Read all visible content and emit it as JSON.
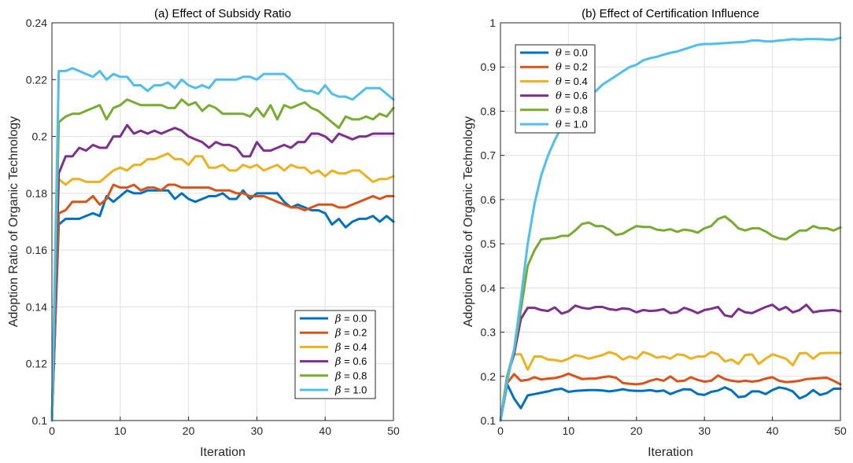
{
  "chart_data": [
    {
      "type": "line",
      "title": "(a) Effect of Subsidy Ratio",
      "xlabel": "Iteration",
      "ylabel": "Adoption Ratio of Organic Technology",
      "xlim": [
        0,
        50
      ],
      "ylim": [
        0.1,
        0.24
      ],
      "xticks": [
        "0",
        "10",
        "20",
        "30",
        "40",
        "50"
      ],
      "yticks": [
        "0.1",
        "0.12",
        "0.14",
        "0.16",
        "0.18",
        "0.2",
        "0.22",
        "0.24"
      ],
      "grid": true,
      "legend_position": "bottom-right",
      "x": [
        0,
        1,
        2,
        3,
        4,
        5,
        6,
        7,
        8,
        9,
        10,
        11,
        12,
        13,
        14,
        15,
        16,
        17,
        18,
        19,
        20,
        21,
        22,
        23,
        24,
        25,
        26,
        27,
        28,
        29,
        30,
        31,
        32,
        33,
        34,
        35,
        36,
        37,
        38,
        39,
        40,
        41,
        42,
        43,
        44,
        45,
        46,
        47,
        48,
        49,
        50
      ],
      "series": [
        {
          "name": "β = 0.0",
          "prefix": "β",
          "value_label": " = 0.0",
          "color": "#0072BD",
          "values": [
            0.1,
            0.169,
            0.171,
            0.171,
            0.171,
            0.172,
            0.173,
            0.172,
            0.179,
            0.177,
            0.179,
            0.181,
            0.18,
            0.18,
            0.181,
            0.181,
            0.181,
            0.181,
            0.178,
            0.18,
            0.178,
            0.177,
            0.178,
            0.179,
            0.179,
            0.18,
            0.178,
            0.178,
            0.181,
            0.178,
            0.18,
            0.18,
            0.18,
            0.18,
            0.177,
            0.175,
            0.176,
            0.175,
            0.174,
            0.174,
            0.173,
            0.169,
            0.171,
            0.168,
            0.17,
            0.171,
            0.171,
            0.172,
            0.17,
            0.172,
            0.17
          ]
        },
        {
          "name": "β = 0.2",
          "prefix": "β",
          "value_label": " = 0.2",
          "color": "#D95319",
          "values": [
            0.1,
            0.173,
            0.174,
            0.177,
            0.177,
            0.177,
            0.179,
            0.176,
            0.178,
            0.183,
            0.182,
            0.182,
            0.183,
            0.181,
            0.182,
            0.182,
            0.181,
            0.183,
            0.183,
            0.182,
            0.182,
            0.182,
            0.182,
            0.182,
            0.181,
            0.181,
            0.181,
            0.18,
            0.18,
            0.179,
            0.179,
            0.179,
            0.178,
            0.177,
            0.176,
            0.175,
            0.175,
            0.174,
            0.175,
            0.176,
            0.176,
            0.176,
            0.175,
            0.175,
            0.176,
            0.177,
            0.178,
            0.179,
            0.178,
            0.179,
            0.179
          ]
        },
        {
          "name": "β = 0.4",
          "prefix": "β",
          "value_label": " = 0.4",
          "color": "#EDB120",
          "values": [
            0.1,
            0.185,
            0.183,
            0.185,
            0.185,
            0.184,
            0.184,
            0.184,
            0.186,
            0.188,
            0.189,
            0.188,
            0.19,
            0.19,
            0.192,
            0.192,
            0.193,
            0.194,
            0.192,
            0.192,
            0.19,
            0.193,
            0.193,
            0.189,
            0.189,
            0.19,
            0.188,
            0.188,
            0.19,
            0.189,
            0.19,
            0.188,
            0.189,
            0.19,
            0.188,
            0.19,
            0.189,
            0.189,
            0.187,
            0.188,
            0.186,
            0.188,
            0.187,
            0.187,
            0.188,
            0.188,
            0.186,
            0.184,
            0.185,
            0.185,
            0.186
          ]
        },
        {
          "name": "β = 0.6",
          "prefix": "β",
          "value_label": " = 0.6",
          "color": "#7E2F8E",
          "values": [
            0.1,
            0.187,
            0.193,
            0.193,
            0.196,
            0.195,
            0.197,
            0.196,
            0.196,
            0.2,
            0.2,
            0.204,
            0.201,
            0.202,
            0.201,
            0.202,
            0.201,
            0.202,
            0.203,
            0.202,
            0.2,
            0.199,
            0.198,
            0.196,
            0.198,
            0.197,
            0.197,
            0.196,
            0.193,
            0.193,
            0.198,
            0.195,
            0.195,
            0.196,
            0.197,
            0.196,
            0.198,
            0.198,
            0.201,
            0.201,
            0.2,
            0.198,
            0.201,
            0.2,
            0.199,
            0.2,
            0.2,
            0.201,
            0.201,
            0.201,
            0.201
          ]
        },
        {
          "name": "β = 0.8",
          "prefix": "β",
          "value_label": " = 0.8",
          "color": "#77AC30",
          "values": [
            0.1,
            0.205,
            0.207,
            0.208,
            0.208,
            0.209,
            0.21,
            0.211,
            0.206,
            0.21,
            0.211,
            0.213,
            0.212,
            0.211,
            0.211,
            0.211,
            0.211,
            0.21,
            0.21,
            0.213,
            0.211,
            0.212,
            0.209,
            0.211,
            0.21,
            0.208,
            0.208,
            0.208,
            0.208,
            0.207,
            0.21,
            0.207,
            0.211,
            0.206,
            0.211,
            0.21,
            0.211,
            0.212,
            0.21,
            0.209,
            0.207,
            0.205,
            0.203,
            0.207,
            0.206,
            0.206,
            0.207,
            0.206,
            0.208,
            0.207,
            0.21
          ]
        },
        {
          "name": "β = 1.0",
          "prefix": "β",
          "value_label": " = 1.0",
          "color": "#4DBEEE",
          "values": [
            0.1,
            0.223,
            0.223,
            0.224,
            0.223,
            0.222,
            0.221,
            0.223,
            0.22,
            0.222,
            0.221,
            0.221,
            0.218,
            0.218,
            0.216,
            0.218,
            0.218,
            0.219,
            0.217,
            0.22,
            0.218,
            0.217,
            0.218,
            0.217,
            0.22,
            0.22,
            0.22,
            0.22,
            0.221,
            0.221,
            0.22,
            0.222,
            0.222,
            0.222,
            0.222,
            0.22,
            0.217,
            0.216,
            0.216,
            0.215,
            0.218,
            0.215,
            0.214,
            0.214,
            0.213,
            0.215,
            0.217,
            0.217,
            0.217,
            0.215,
            0.213
          ]
        }
      ]
    },
    {
      "type": "line",
      "title": "(b) Effect of Certification Influence",
      "xlabel": "Iteration",
      "ylabel": "Adoption Ratio of Organic Technology",
      "xlim": [
        0,
        50
      ],
      "ylim": [
        0.1,
        1.0
      ],
      "xticks": [
        "0",
        "10",
        "20",
        "30",
        "40",
        "50"
      ],
      "yticks": [
        "0.1",
        "0.2",
        "0.3",
        "0.4",
        "0.5",
        "0.6",
        "0.7",
        "0.8",
        "0.9",
        "1"
      ],
      "grid": true,
      "legend_position": "top-left",
      "x": [
        0,
        1,
        2,
        3,
        4,
        5,
        6,
        7,
        8,
        9,
        10,
        11,
        12,
        13,
        14,
        15,
        16,
        17,
        18,
        19,
        20,
        21,
        22,
        23,
        24,
        25,
        26,
        27,
        28,
        29,
        30,
        31,
        32,
        33,
        34,
        35,
        36,
        37,
        38,
        39,
        40,
        41,
        42,
        43,
        44,
        45,
        46,
        47,
        48,
        49,
        50
      ],
      "series": [
        {
          "name": "θ = 0.0",
          "prefix": "θ",
          "value_label": " = 0.0",
          "color": "#0072BD",
          "values": [
            0.1,
            0.182,
            0.15,
            0.128,
            0.157,
            0.16,
            0.163,
            0.166,
            0.17,
            0.172,
            0.165,
            0.167,
            0.168,
            0.169,
            0.169,
            0.168,
            0.166,
            0.168,
            0.171,
            0.168,
            0.167,
            0.167,
            0.169,
            0.166,
            0.168,
            0.16,
            0.166,
            0.171,
            0.17,
            0.16,
            0.158,
            0.165,
            0.168,
            0.175,
            0.168,
            0.153,
            0.155,
            0.166,
            0.166,
            0.16,
            0.169,
            0.175,
            0.172,
            0.166,
            0.15,
            0.157,
            0.169,
            0.158,
            0.162,
            0.172,
            0.172
          ]
        },
        {
          "name": "θ = 0.2",
          "prefix": "θ",
          "value_label": " = 0.2",
          "color": "#D95319",
          "values": [
            0.1,
            0.185,
            0.205,
            0.19,
            0.192,
            0.198,
            0.193,
            0.195,
            0.196,
            0.2,
            0.206,
            0.2,
            0.194,
            0.195,
            0.195,
            0.198,
            0.2,
            0.197,
            0.185,
            0.183,
            0.182,
            0.184,
            0.19,
            0.194,
            0.19,
            0.2,
            0.189,
            0.19,
            0.198,
            0.192,
            0.188,
            0.19,
            0.202,
            0.194,
            0.19,
            0.188,
            0.19,
            0.188,
            0.19,
            0.195,
            0.198,
            0.19,
            0.187,
            0.188,
            0.19,
            0.194,
            0.195,
            0.196,
            0.197,
            0.19,
            0.182
          ]
        },
        {
          "name": "θ = 0.4",
          "prefix": "θ",
          "value_label": " = 0.4",
          "color": "#EDB120",
          "values": [
            0.1,
            0.2,
            0.25,
            0.25,
            0.215,
            0.245,
            0.245,
            0.238,
            0.237,
            0.234,
            0.24,
            0.248,
            0.245,
            0.24,
            0.244,
            0.248,
            0.255,
            0.25,
            0.238,
            0.245,
            0.24,
            0.255,
            0.25,
            0.242,
            0.245,
            0.24,
            0.25,
            0.248,
            0.24,
            0.245,
            0.245,
            0.255,
            0.25,
            0.234,
            0.238,
            0.228,
            0.248,
            0.25,
            0.228,
            0.24,
            0.25,
            0.245,
            0.24,
            0.225,
            0.252,
            0.253,
            0.24,
            0.252,
            0.253,
            0.253,
            0.253
          ]
        },
        {
          "name": "θ = 0.6",
          "prefix": "θ",
          "value_label": " = 0.6",
          "color": "#7E2F8E",
          "values": [
            0.1,
            0.2,
            0.25,
            0.33,
            0.355,
            0.355,
            0.35,
            0.348,
            0.356,
            0.342,
            0.347,
            0.36,
            0.355,
            0.353,
            0.357,
            0.357,
            0.352,
            0.35,
            0.354,
            0.352,
            0.345,
            0.35,
            0.348,
            0.349,
            0.352,
            0.343,
            0.345,
            0.355,
            0.35,
            0.343,
            0.35,
            0.353,
            0.357,
            0.338,
            0.335,
            0.353,
            0.345,
            0.343,
            0.35,
            0.357,
            0.362,
            0.35,
            0.357,
            0.345,
            0.35,
            0.362,
            0.345,
            0.348,
            0.349,
            0.35,
            0.347
          ]
        },
        {
          "name": "θ = 0.8",
          "prefix": "θ",
          "value_label": " = 0.8",
          "color": "#77AC30",
          "values": [
            0.1,
            0.2,
            0.26,
            0.35,
            0.45,
            0.485,
            0.51,
            0.512,
            0.513,
            0.518,
            0.518,
            0.53,
            0.545,
            0.548,
            0.54,
            0.54,
            0.532,
            0.52,
            0.523,
            0.532,
            0.54,
            0.538,
            0.538,
            0.532,
            0.53,
            0.533,
            0.527,
            0.532,
            0.53,
            0.525,
            0.535,
            0.54,
            0.556,
            0.562,
            0.55,
            0.535,
            0.53,
            0.535,
            0.535,
            0.528,
            0.518,
            0.512,
            0.51,
            0.52,
            0.53,
            0.53,
            0.54,
            0.535,
            0.535,
            0.53,
            0.537
          ]
        },
        {
          "name": "θ = 1.0",
          "prefix": "θ",
          "value_label": " = 1.0",
          "color": "#4DBEEE",
          "values": [
            0.1,
            0.19,
            0.26,
            0.375,
            0.5,
            0.59,
            0.655,
            0.7,
            0.735,
            0.765,
            0.782,
            0.8,
            0.825,
            0.835,
            0.845,
            0.86,
            0.87,
            0.88,
            0.89,
            0.9,
            0.905,
            0.915,
            0.92,
            0.923,
            0.928,
            0.932,
            0.935,
            0.94,
            0.945,
            0.95,
            0.952,
            0.952,
            0.953,
            0.954,
            0.955,
            0.956,
            0.957,
            0.96,
            0.96,
            0.958,
            0.958,
            0.96,
            0.961,
            0.963,
            0.962,
            0.963,
            0.963,
            0.963,
            0.962,
            0.962,
            0.966
          ]
        }
      ]
    }
  ]
}
